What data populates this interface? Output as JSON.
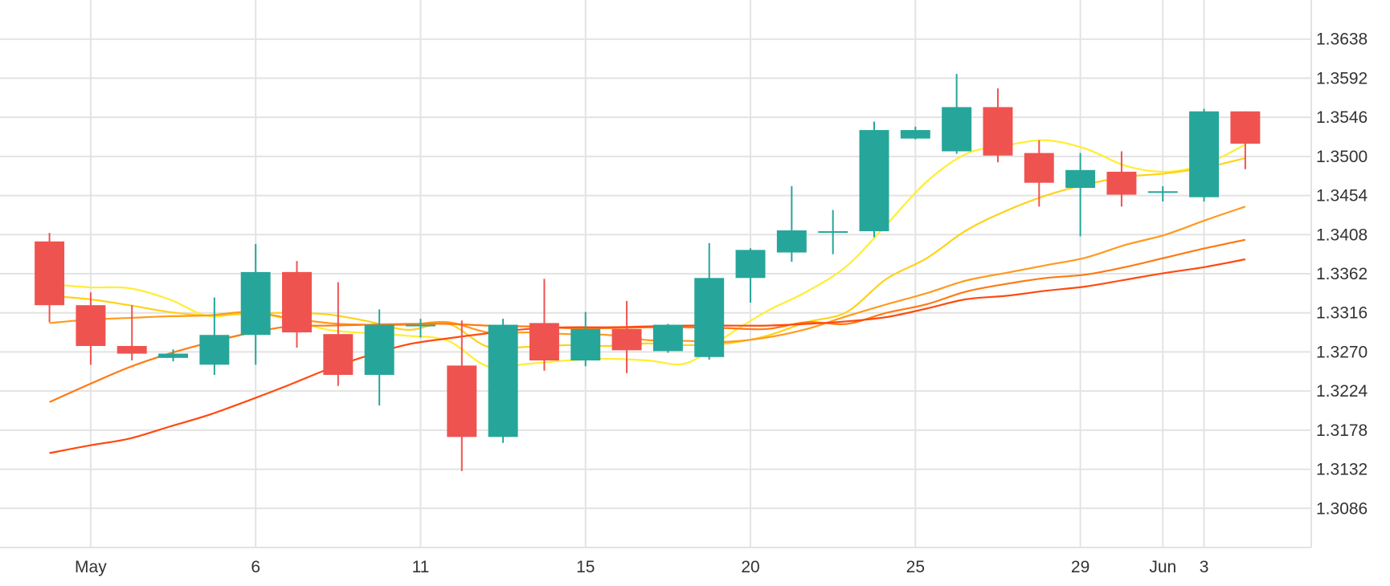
{
  "chart_data": {
    "type": "candlestick",
    "title": "",
    "xlabel": "",
    "ylabel": "",
    "ylim": [
      1.304,
      1.3684
    ],
    "y_ticks": [
      1.3086,
      1.3132,
      1.3178,
      1.3224,
      1.327,
      1.3316,
      1.3362,
      1.3408,
      1.3454,
      1.35,
      1.3546,
      1.3592,
      1.3638
    ],
    "y_tick_labels": [
      "1.3086",
      "1.3132",
      "1.3178",
      "1.3224",
      "1.3270",
      "1.3316",
      "1.3362",
      "1.3408",
      "1.3454",
      "1.3500",
      "1.3546",
      "1.3592",
      "1.3638"
    ],
    "x_ticks": [
      {
        "index": 1,
        "label": "May"
      },
      {
        "index": 5,
        "label": "6"
      },
      {
        "index": 9,
        "label": "11"
      },
      {
        "index": 13,
        "label": "15"
      },
      {
        "index": 17,
        "label": "20"
      },
      {
        "index": 21,
        "label": "25"
      },
      {
        "index": 25,
        "label": "29"
      },
      {
        "index": 27,
        "label": "Jun"
      },
      {
        "index": 28,
        "label": "3"
      }
    ],
    "x_range": [
      -1.2,
      30.6
    ],
    "up_color": "#26a69a",
    "down_color": "#ef5350",
    "grid": true,
    "candles": [
      {
        "o": 1.34,
        "h": 1.341,
        "l": 1.3305,
        "c": 1.3325
      },
      {
        "o": 1.3325,
        "h": 1.334,
        "l": 1.3255,
        "c": 1.3277
      },
      {
        "o": 1.3277,
        "h": 1.3325,
        "l": 1.326,
        "c": 1.3268
      },
      {
        "o": 1.3263,
        "h": 1.3273,
        "l": 1.3259,
        "c": 1.3268
      },
      {
        "o": 1.3255,
        "h": 1.3334,
        "l": 1.3243,
        "c": 1.329
      },
      {
        "o": 1.329,
        "h": 1.3397,
        "l": 1.3255,
        "c": 1.3364
      },
      {
        "o": 1.3364,
        "h": 1.3377,
        "l": 1.3275,
        "c": 1.3293
      },
      {
        "o": 1.3291,
        "h": 1.3352,
        "l": 1.323,
        "c": 1.3243
      },
      {
        "o": 1.3243,
        "h": 1.332,
        "l": 1.3207,
        "c": 1.3302
      },
      {
        "o": 1.3302,
        "h": 1.3309,
        "l": 1.3287,
        "c": 1.3302
      },
      {
        "o": 1.3254,
        "h": 1.3307,
        "l": 1.313,
        "c": 1.317
      },
      {
        "o": 1.317,
        "h": 1.3309,
        "l": 1.3163,
        "c": 1.3302
      },
      {
        "o": 1.3304,
        "h": 1.3356,
        "l": 1.3248,
        "c": 1.326
      },
      {
        "o": 1.326,
        "h": 1.3317,
        "l": 1.3253,
        "c": 1.3297
      },
      {
        "o": 1.3297,
        "h": 1.333,
        "l": 1.3245,
        "c": 1.3272
      },
      {
        "o": 1.3271,
        "h": 1.3303,
        "l": 1.3269,
        "c": 1.3302
      },
      {
        "o": 1.3264,
        "h": 1.3398,
        "l": 1.3261,
        "c": 1.3357
      },
      {
        "o": 1.3357,
        "h": 1.3392,
        "l": 1.3328,
        "c": 1.339
      },
      {
        "o": 1.3387,
        "h": 1.3465,
        "l": 1.3376,
        "c": 1.3413
      },
      {
        "o": 1.3412,
        "h": 1.3437,
        "l": 1.3385,
        "c": 1.3412
      },
      {
        "o": 1.3412,
        "h": 1.3541,
        "l": 1.3405,
        "c": 1.3531
      },
      {
        "o": 1.3521,
        "h": 1.3535,
        "l": 1.352,
        "c": 1.3531
      },
      {
        "o": 1.3506,
        "h": 1.3597,
        "l": 1.3503,
        "c": 1.3558
      },
      {
        "o": 1.3558,
        "h": 1.358,
        "l": 1.3493,
        "c": 1.3501
      },
      {
        "o": 1.3504,
        "h": 1.3519,
        "l": 1.3441,
        "c": 1.3469
      },
      {
        "o": 1.3463,
        "h": 1.3504,
        "l": 1.3406,
        "c": 1.3484
      },
      {
        "o": 1.3482,
        "h": 1.3506,
        "l": 1.3441,
        "c": 1.3455
      },
      {
        "o": 1.3459,
        "h": 1.3465,
        "l": 1.3447,
        "c": 1.3459
      },
      {
        "o": 1.3452,
        "h": 1.3556,
        "l": 1.3447,
        "c": 1.3553
      },
      {
        "o": 1.3553,
        "h": 1.3553,
        "l": 1.3485,
        "c": 1.3515
      }
    ],
    "series": [
      {
        "color": "#ffee33",
        "start": 0,
        "values": [
          1.335,
          1.3346,
          1.3345,
          1.3332,
          1.3312,
          1.3317,
          1.3308,
          1.3296,
          1.3292,
          1.3289,
          1.3283,
          1.3253,
          1.3256,
          1.326,
          1.3262,
          1.326,
          1.3257,
          1.3289,
          1.3318,
          1.3341,
          1.3371,
          1.342,
          1.347,
          1.3503,
          1.3513,
          1.3519,
          1.3509,
          1.3489,
          1.3482,
          1.3491,
          1.3514
        ]
      },
      {
        "color": "#ffd21a",
        "start": 0,
        "values": [
          1.3336,
          1.3332,
          1.3325,
          1.3317,
          1.3313,
          1.3315,
          1.3316,
          1.3314,
          1.3306,
          1.3296,
          1.3303,
          1.3276,
          1.3276,
          1.3278,
          1.3277,
          1.328,
          1.3278,
          1.328,
          1.3289,
          1.3305,
          1.3317,
          1.3356,
          1.338,
          1.3413,
          1.3436,
          1.3454,
          1.3467,
          1.3476,
          1.348,
          1.3487,
          1.3498
        ]
      },
      {
        "color": "#ff9a1f",
        "start": 0,
        "values": [
          1.3304,
          1.3308,
          1.331,
          1.3312,
          1.3313,
          1.3317,
          1.331,
          1.3304,
          1.3302,
          1.3302,
          1.3305,
          1.3293,
          1.3293,
          1.3291,
          1.329,
          1.3284,
          1.3283,
          1.3282,
          1.3287,
          1.3297,
          1.3312,
          1.3326,
          1.3339,
          1.3354,
          1.3363,
          1.3372,
          1.3381,
          1.3396,
          1.3408,
          1.3425,
          1.3441
        ]
      },
      {
        "color": "#ff7a12",
        "start": 0,
        "values": [
          1.3211,
          1.3232,
          1.3252,
          1.3268,
          1.3281,
          1.3292,
          1.33,
          1.3301,
          1.3302,
          1.3303,
          1.3303,
          1.3301,
          1.33,
          1.3298,
          1.3298,
          1.3299,
          1.3299,
          1.3298,
          1.3297,
          1.3305,
          1.3303,
          1.3316,
          1.3326,
          1.3341,
          1.335,
          1.3357,
          1.3361,
          1.337,
          1.3381,
          1.3392,
          1.3402
        ]
      },
      {
        "color": "#ff4a10",
        "start": 0,
        "values": [
          1.3151,
          1.316,
          1.3168,
          1.3182,
          1.3196,
          1.3213,
          1.3231,
          1.325,
          1.3266,
          1.3279,
          1.3286,
          1.3292,
          1.3297,
          1.3299,
          1.3299,
          1.33,
          1.3301,
          1.3301,
          1.3301,
          1.3303,
          1.3306,
          1.3311,
          1.3321,
          1.3332,
          1.3336,
          1.3342,
          1.3347,
          1.3355,
          1.3363,
          1.337,
          1.3379
        ]
      }
    ]
  }
}
